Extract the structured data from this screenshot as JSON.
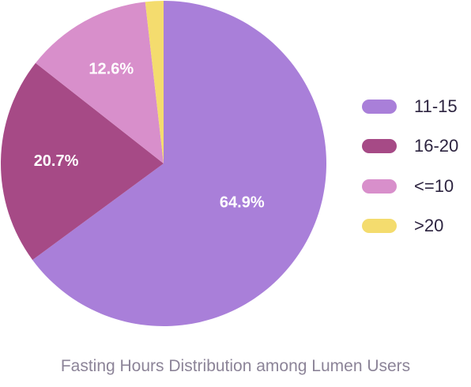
{
  "chart_data": {
    "type": "pie",
    "title": "Fasting Hours Distribution among Lumen Users",
    "slices": [
      {
        "label": "11-15",
        "value": 64.9,
        "display": "64.9%",
        "color": "#a97fd9"
      },
      {
        "label": "16-20",
        "value": 20.7,
        "display": "20.7%",
        "color": "#a64a86"
      },
      {
        "label": "<=10",
        "value": 12.6,
        "display": "12.6%",
        "color": "#d88fcb"
      },
      {
        "label": ">20",
        "value": 1.8,
        "display": "",
        "color": "#f4dc6e"
      }
    ],
    "legend_position": "right",
    "start_angle": "top",
    "direction": "clockwise"
  }
}
